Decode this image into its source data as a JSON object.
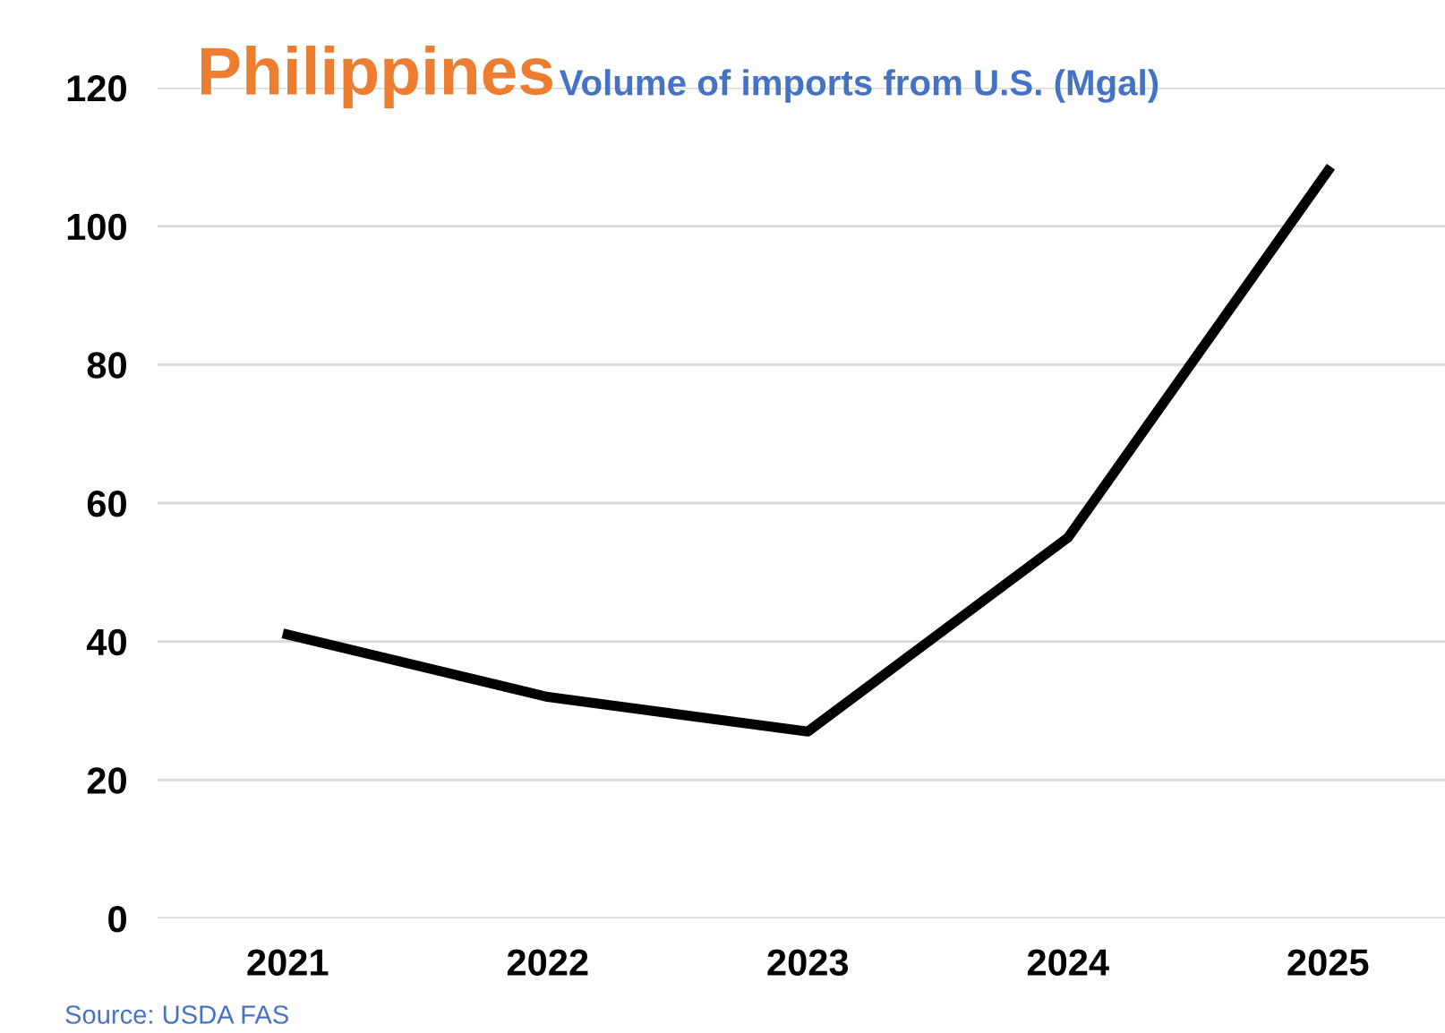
{
  "chart_data": {
    "type": "line",
    "title": "Philippines",
    "subtitle": "Volume of imports from U.S. (Mgal)",
    "categories": [
      "2021",
      "2022",
      "2023",
      "2024",
      "2025"
    ],
    "series": [
      {
        "color": "#000000",
        "values": [
          41,
          32,
          27,
          55,
          108
        ]
      }
    ],
    "ylim": [
      0,
      120
    ],
    "yticks": [
      0,
      20,
      40,
      60,
      80,
      100,
      120
    ],
    "grid": "y",
    "marker": "none",
    "line_style": "solid",
    "legend": false,
    "annotations": [
      "Source: USDA FAS"
    ]
  }
}
